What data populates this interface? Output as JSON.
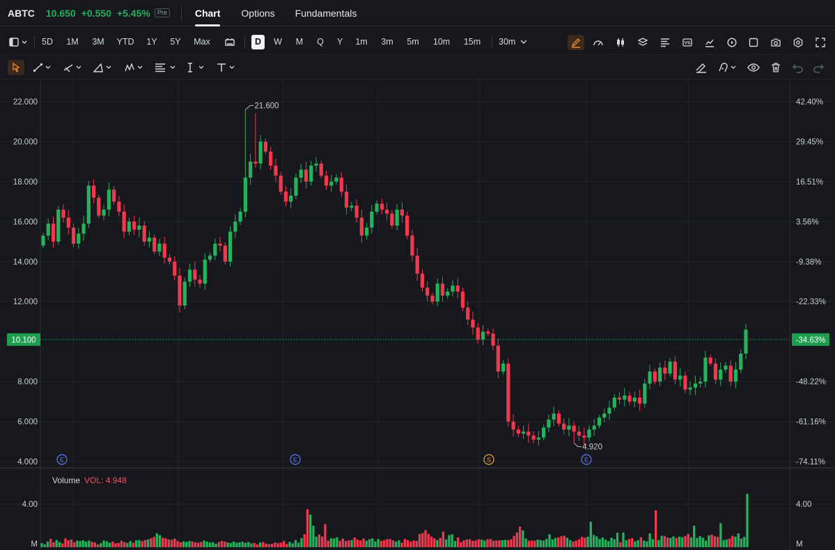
{
  "header": {
    "ticker": "ABTC",
    "price": "10.650",
    "change": "+0.550",
    "change_pct": "+5.45%",
    "session_badge": "Pre",
    "tabs": [
      {
        "label": "Chart",
        "active": true
      },
      {
        "label": "Options",
        "active": false
      },
      {
        "label": "Fundamentals",
        "active": false
      }
    ]
  },
  "period_toolbar": {
    "ranges": [
      "5D",
      "1M",
      "3M",
      "YTD",
      "1Y",
      "5Y",
      "Max"
    ],
    "intervals": [
      "D",
      "W",
      "M",
      "Q",
      "Y",
      "1m",
      "3m",
      "5m",
      "10m",
      "15m"
    ],
    "active_interval": "D",
    "interval_dropdown": "30m",
    "right_icons": [
      "pencil-icon",
      "gauge-icon",
      "candlestick-icon",
      "layers-icon",
      "align-icon",
      "versus-icon",
      "line-chart-icon",
      "replay-icon",
      "square-icon",
      "camera-icon",
      "settings-icon",
      "fullscreen-icon"
    ]
  },
  "drawing_toolbar": {
    "tools": [
      "cursor-icon",
      "trend-line-icon",
      "ray-tool-icon",
      "angle-tool-icon",
      "wave-tool-icon",
      "fib-tool-icon",
      "measure-tool-icon",
      "text-tool-icon"
    ],
    "right_tools": [
      "erase-drawings-icon",
      "magnet-icon",
      "eye-icon",
      "trash-icon",
      "undo-icon",
      "redo-icon"
    ]
  },
  "chart_data": {
    "type": "candlestick",
    "y_axis_left": [
      "22.000",
      "20.000",
      "18.000",
      "16.000",
      "14.000",
      "12.000",
      "10.100",
      "8.000",
      "6.000",
      "4.000"
    ],
    "y_axis_right": [
      "42.40%",
      "29.45%",
      "16.51%",
      "3.56%",
      "-9.38%",
      "-22.33%",
      "-34.63%",
      "-48.22%",
      "-61.16%",
      "-74.11%"
    ],
    "ylim": [
      4.0,
      22.0
    ],
    "last_price_tag": "10.100",
    "last_pct_tag": "-34.63%",
    "high_marker": "21.600",
    "low_marker": "4.920",
    "event_markers": [
      "E",
      "E",
      "S",
      "E"
    ],
    "volume": {
      "title": "Volume",
      "value_label": "VOL: 4.948",
      "left_tick": "4.00",
      "right_tick": "4.00",
      "left_unit": "M",
      "right_unit": "M"
    },
    "up_color": "#26b15c",
    "down_color": "#f0394f"
  }
}
